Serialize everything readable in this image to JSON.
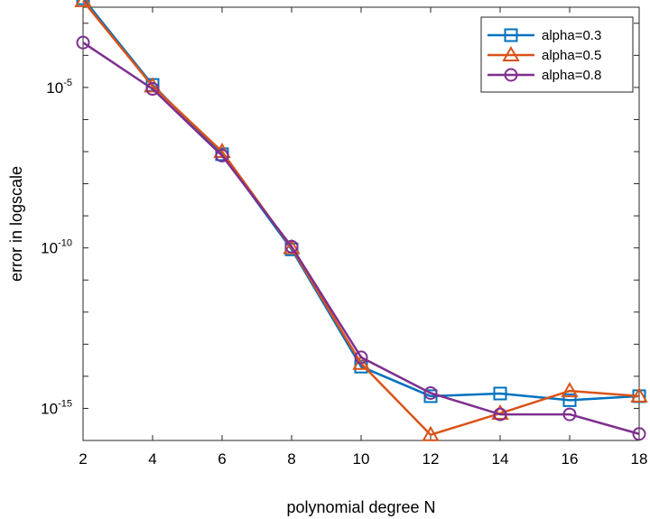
{
  "chart_data": {
    "type": "line",
    "xlabel": "polynomial degree N",
    "ylabel": "error in logscale",
    "x": [
      2,
      4,
      6,
      8,
      10,
      12,
      14,
      16,
      18
    ],
    "xlim": [
      2,
      18
    ],
    "xticks": [
      "2",
      "4",
      "6",
      "8",
      "10",
      "12",
      "14",
      "16",
      "18"
    ],
    "yscale": "log",
    "ylim_log10": [
      -16,
      -2.5
    ],
    "yticks": [
      {
        "base": "10",
        "exp": "-5",
        "value_log10": -5
      },
      {
        "base": "10",
        "exp": "-10",
        "value_log10": -10
      },
      {
        "base": "10",
        "exp": "-15",
        "value_log10": -15
      }
    ],
    "grid": false,
    "legend_position": "top-right",
    "series": [
      {
        "name": "alpha=0.3",
        "color": "#0072BD",
        "marker": "square",
        "values": [
          0.006,
          1.2e-05,
          8.3e-08,
          9e-11,
          2e-14,
          2.4e-15,
          2.9e-15,
          1.8e-15,
          2.4e-15
        ]
      },
      {
        "name": "alpha=0.5",
        "color": "#D95319",
        "marker": "triangle",
        "values": [
          0.005,
          1.1e-05,
          1e-07,
          1e-10,
          2.5e-14,
          1.5e-16,
          7e-16,
          3.5e-15,
          2.4e-15
        ]
      },
      {
        "name": "alpha=0.8",
        "color": "#7E2F8E",
        "marker": "circle",
        "values": [
          0.00025,
          9e-06,
          7.5e-08,
          1.1e-10,
          3.9e-14,
          3e-15,
          6.5e-16,
          6.5e-16,
          1.6e-16
        ]
      }
    ]
  }
}
